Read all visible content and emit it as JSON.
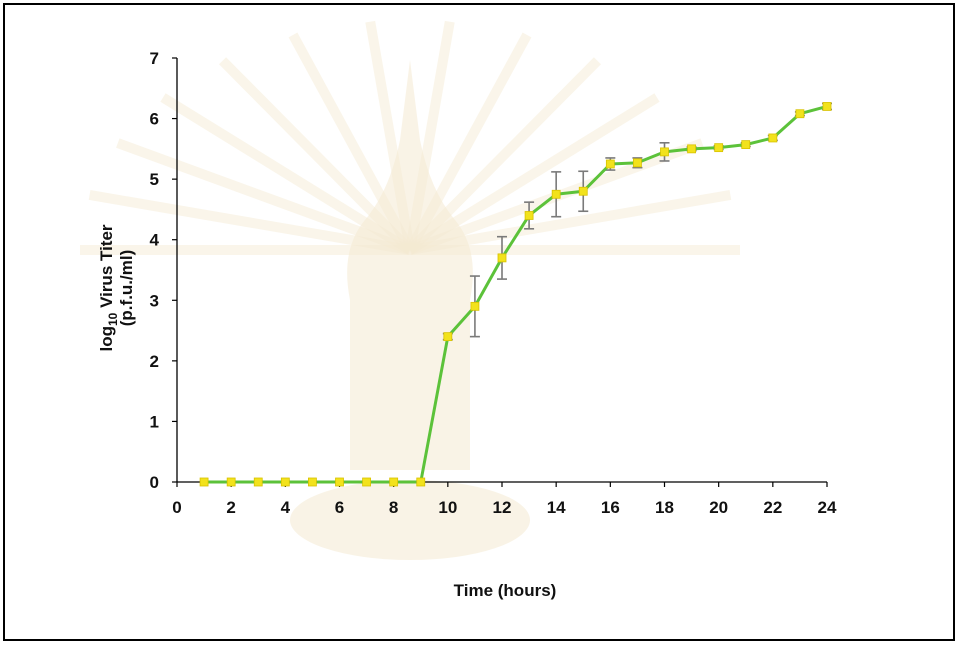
{
  "chart_data": {
    "type": "line",
    "title": "",
    "xlabel": "Time (hours)",
    "ylabel_parts": {
      "prefix": "log",
      "subscript": "10",
      "suffix": " Virus Titer",
      "line2": "(p.f.u./ml)"
    },
    "xlim": [
      0,
      24
    ],
    "ylim": [
      0,
      7
    ],
    "x_ticks": [
      0,
      2,
      4,
      6,
      8,
      10,
      12,
      14,
      16,
      18,
      20,
      22,
      24
    ],
    "y_ticks": [
      0,
      1,
      2,
      3,
      4,
      5,
      6,
      7
    ],
    "grid": false,
    "legend": "none",
    "series": [
      {
        "x": [
          1,
          2,
          3,
          4,
          5,
          6,
          7,
          8,
          9,
          10,
          11,
          12,
          13,
          14,
          15,
          16,
          17,
          18,
          19,
          20,
          21,
          22,
          23,
          24
        ],
        "y": [
          0,
          0,
          0,
          0,
          0,
          0,
          0,
          0,
          0,
          2.4,
          2.9,
          3.7,
          4.4,
          4.75,
          4.8,
          5.25,
          5.27,
          5.45,
          5.5,
          5.52,
          5.57,
          5.68,
          6.08,
          6.2
        ],
        "error": [
          0,
          0,
          0,
          0,
          0,
          0,
          0,
          0,
          0,
          0.05,
          0.5,
          0.35,
          0.22,
          0.37,
          0.33,
          0.1,
          0.08,
          0.15,
          0.03,
          0.03,
          0.03,
          0.04,
          0.03,
          0.05
        ],
        "line_color": "#5cc23a",
        "marker_color": "#f2e21c",
        "error_color": "#7a7a7a"
      }
    ]
  }
}
